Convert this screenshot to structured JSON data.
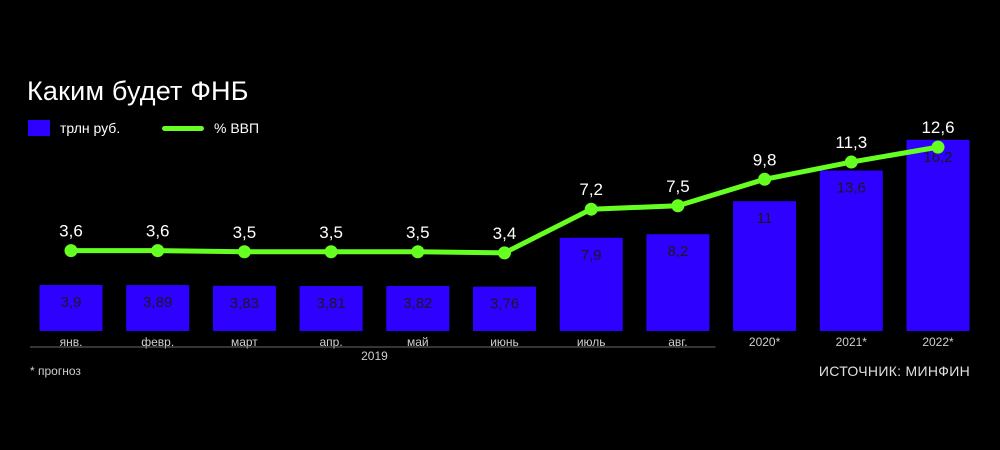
{
  "title": "Каким будет ФНБ",
  "legend": {
    "bar_label": "трлн руб.",
    "line_label": "% ВВП"
  },
  "footnote": "* прогноз",
  "source": "ИСТОЧНИК: МИНФИН",
  "colors": {
    "bar": "#2e00ff",
    "line": "#66ff22",
    "background": "#000000"
  },
  "chart_data": {
    "type": "bar",
    "categories": [
      "янв.",
      "февр.",
      "март",
      "апр.",
      "май",
      "июнь",
      "июль",
      "авг.",
      "2020*",
      "2021*",
      "2022*"
    ],
    "group_label": "2019",
    "series": [
      {
        "name": "трлн руб.",
        "type": "bar",
        "values": [
          3.9,
          3.89,
          3.83,
          3.81,
          3.82,
          3.76,
          7.9,
          8.2,
          11,
          13.6,
          16.2
        ],
        "labels": [
          "3,9",
          "3,89",
          "3,83",
          "3,81",
          "3,82",
          "3,76",
          "7,9",
          "8,2",
          "11",
          "13,6",
          "16,2"
        ]
      },
      {
        "name": "% ВВП",
        "type": "line",
        "values": [
          3.6,
          3.6,
          3.5,
          3.5,
          3.5,
          3.4,
          7.2,
          7.5,
          9.8,
          11.3,
          12.6
        ],
        "labels": [
          "3,6",
          "3,6",
          "3,5",
          "3,5",
          "3,5",
          "3,4",
          "7,2",
          "7,5",
          "9,8",
          "11,3",
          "12,6"
        ]
      }
    ]
  }
}
